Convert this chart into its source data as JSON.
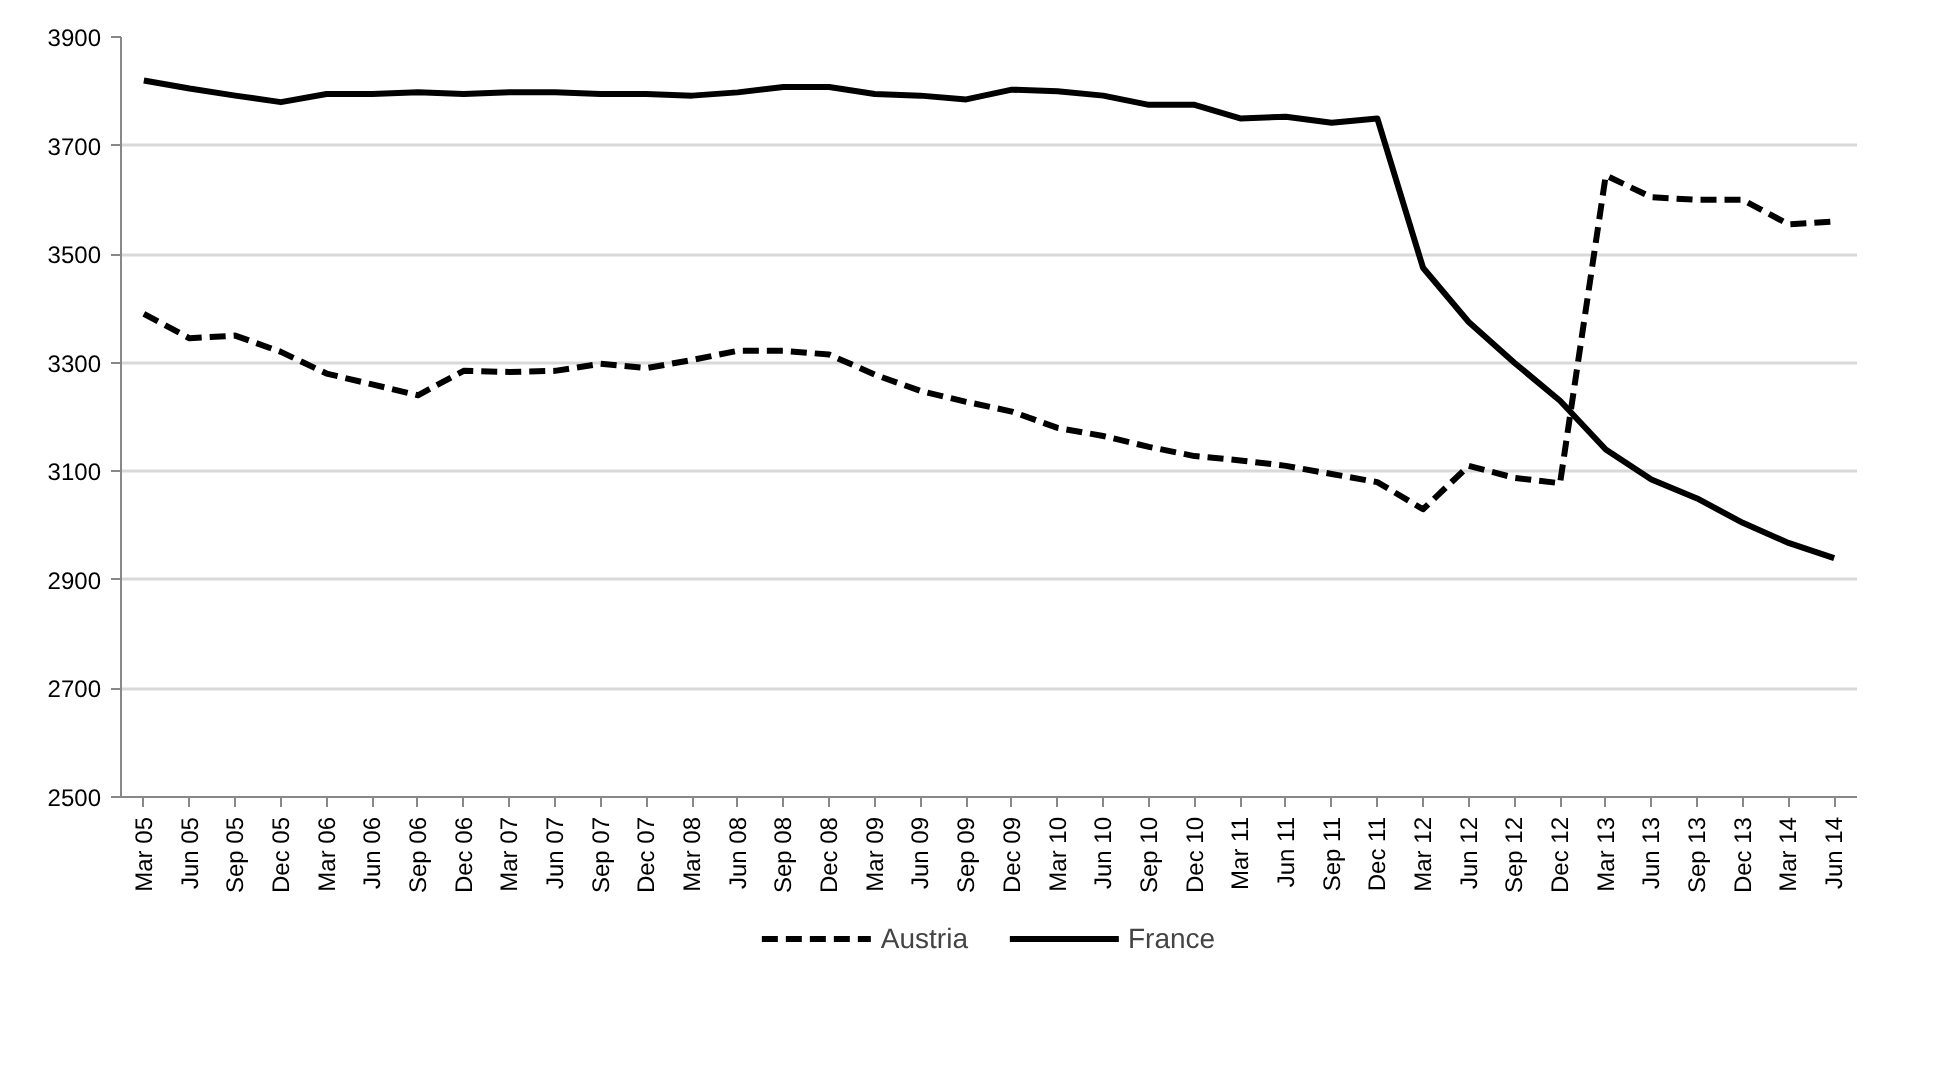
{
  "chart_data": {
    "type": "line",
    "categories": [
      "Mar 05",
      "Jun 05",
      "Sep 05",
      "Dec 05",
      "Mar 06",
      "Jun 06",
      "Sep 06",
      "Dec 06",
      "Mar 07",
      "Jun 07",
      "Sep 07",
      "Dec 07",
      "Mar 08",
      "Jun 08",
      "Sep 08",
      "Dec 08",
      "Mar 09",
      "Jun 09",
      "Sep 09",
      "Dec 09",
      "Mar 10",
      "Jun 10",
      "Sep 10",
      "Dec 10",
      "Mar 11",
      "Jun 11",
      "Sep 11",
      "Dec 11",
      "Mar 12",
      "Jun 12",
      "Sep 12",
      "Dec 12",
      "Mar 13",
      "Jun 13",
      "Sep 13",
      "Dec 13",
      "Mar 14",
      "Jun 14"
    ],
    "series": [
      {
        "name": "Austria",
        "color": "#000000",
        "line_style": "dashed",
        "values": [
          3390,
          3345,
          3350,
          3320,
          3280,
          3260,
          3240,
          3285,
          3283,
          3285,
          3298,
          3290,
          3305,
          3322,
          3322,
          3315,
          3278,
          3248,
          3228,
          3210,
          3180,
          3165,
          3145,
          3128,
          3120,
          3110,
          3095,
          3080,
          3030,
          3110,
          3088,
          3078,
          3645,
          3605,
          3600,
          3600,
          3555,
          3560
        ]
      },
      {
        "name": "France",
        "color": "#000000",
        "line_style": "solid",
        "values": [
          3820,
          3805,
          3792,
          3780,
          3795,
          3795,
          3798,
          3795,
          3798,
          3798,
          3795,
          3795,
          3792,
          3798,
          3808,
          3808,
          3795,
          3792,
          3785,
          3803,
          3800,
          3792,
          3775,
          3775,
          3750,
          3753,
          3742,
          3750,
          3475,
          3375,
          3300,
          3230,
          3140,
          3085,
          3050,
          3005,
          2968,
          2940
        ]
      }
    ],
    "ylim": [
      2500,
      3900
    ],
    "yticks": [
      2500,
      2700,
      2900,
      3100,
      3300,
      3500,
      3700,
      3900
    ],
    "grid": "y",
    "legend": "bottom",
    "marker": "none"
  }
}
